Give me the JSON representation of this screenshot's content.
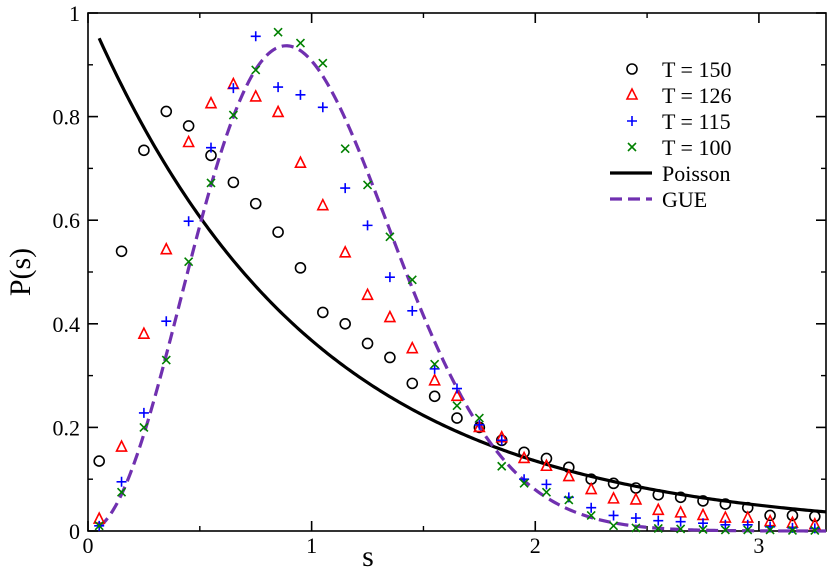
{
  "chart_data": {
    "type": "scatter",
    "title": "",
    "xlabel": "s",
    "ylabel": "P(s)",
    "xlim": [
      0,
      3.3
    ],
    "ylim": [
      0,
      1
    ],
    "x_ticks": [
      {
        "value": 0,
        "label": "0"
      },
      {
        "value": 1,
        "label": "1"
      },
      {
        "value": 2,
        "label": "2"
      },
      {
        "value": 3,
        "label": "3"
      }
    ],
    "y_ticks": [
      {
        "value": 0,
        "label": "0"
      },
      {
        "value": 0.2,
        "label": "0.2"
      },
      {
        "value": 0.4,
        "label": "0.4"
      },
      {
        "value": 0.6,
        "label": "0.6"
      },
      {
        "value": 0.8,
        "label": "0.8"
      },
      {
        "value": 1,
        "label": "1"
      }
    ],
    "legend_position": "top-right",
    "x": [
      0.05,
      0.15,
      0.25,
      0.35,
      0.45,
      0.55,
      0.65,
      0.75,
      0.85,
      0.95,
      1.05,
      1.15,
      1.25,
      1.35,
      1.45,
      1.55,
      1.65,
      1.75,
      1.85,
      1.95,
      2.05,
      2.15,
      2.25,
      2.35,
      2.45,
      2.55,
      2.65,
      2.75,
      2.85,
      2.95,
      3.05,
      3.15,
      3.25
    ],
    "series": [
      {
        "name": "T = 150",
        "marker": "circle",
        "color": "#000000",
        "values": [
          0.135,
          0.54,
          0.735,
          0.81,
          0.782,
          0.725,
          0.673,
          0.632,
          0.577,
          0.508,
          0.422,
          0.4,
          0.362,
          0.335,
          0.285,
          0.26,
          0.218,
          0.2,
          0.175,
          0.152,
          0.14,
          0.123,
          0.1,
          0.092,
          0.083,
          0.07,
          0.065,
          0.058,
          0.052,
          0.045,
          0.03,
          0.03,
          0.028
        ]
      },
      {
        "name": "T = 126",
        "marker": "triangle",
        "color": "#ff0000",
        "values": [
          0.023,
          0.162,
          0.38,
          0.543,
          0.75,
          0.825,
          0.862,
          0.838,
          0.808,
          0.71,
          0.628,
          0.537,
          0.455,
          0.412,
          0.352,
          0.29,
          0.26,
          0.2,
          0.18,
          0.14,
          0.125,
          0.105,
          0.08,
          0.062,
          0.06,
          0.04,
          0.035,
          0.03,
          0.025,
          0.025,
          0.018,
          0.015,
          0.012
        ]
      },
      {
        "name": "T = 115",
        "marker": "plus",
        "color": "#0000ff",
        "values": [
          0.01,
          0.095,
          0.228,
          0.405,
          0.598,
          0.74,
          0.855,
          0.955,
          0.857,
          0.842,
          0.818,
          0.662,
          0.59,
          0.49,
          0.425,
          0.313,
          0.275,
          0.205,
          0.175,
          0.1,
          0.09,
          0.065,
          0.045,
          0.03,
          0.025,
          0.02,
          0.018,
          0.015,
          0.012,
          0.012,
          0.008,
          0.006,
          0.005
        ]
      },
      {
        "name": "T = 100",
        "marker": "cross",
        "color": "#008000",
        "values": [
          0.01,
          0.075,
          0.2,
          0.33,
          0.52,
          0.672,
          0.803,
          0.89,
          0.963,
          0.942,
          0.903,
          0.738,
          0.668,
          0.568,
          0.485,
          0.322,
          0.242,
          0.218,
          0.125,
          0.092,
          0.075,
          0.06,
          0.03,
          0.01,
          0.006,
          0.005,
          0.004,
          0.003,
          0.002,
          0.002,
          0.002,
          0.001,
          0.001
        ]
      }
    ],
    "curves": [
      {
        "name": "Poisson",
        "style": "solid",
        "color": "#000000",
        "formula": "exp(-s)"
      },
      {
        "name": "GUE",
        "style": "dashed",
        "color": "#7030b0",
        "formula": "(32/pi^2) s^2 exp(-4 s^2 / pi)"
      }
    ]
  }
}
